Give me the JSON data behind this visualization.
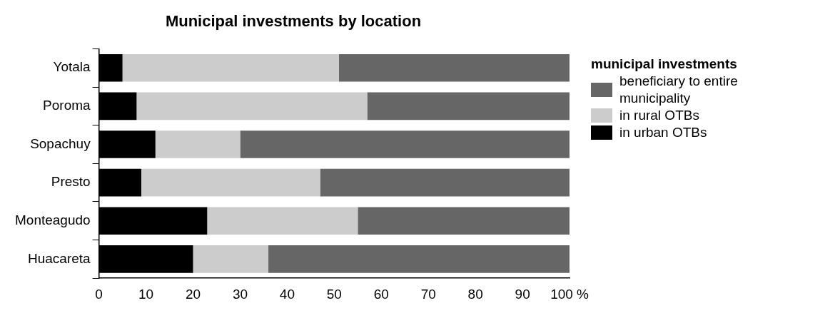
{
  "chart_data": {
    "type": "bar",
    "title": "Municipal investments by location",
    "orientation": "horizontal",
    "stacked": true,
    "categories": [
      "Yotala",
      "Poroma",
      "Sopachuy",
      "Presto",
      "Monteagudo",
      "Huacareta"
    ],
    "series": [
      {
        "name": "in urban OTBs",
        "color": "#000000",
        "values": [
          5,
          8,
          12,
          9,
          23,
          20
        ]
      },
      {
        "name": "in rural OTBs",
        "color": "#cccccc",
        "values": [
          46,
          49,
          18,
          38,
          32,
          16
        ]
      },
      {
        "name": "beneficiary to entire municipality",
        "color": "#666666",
        "values": [
          49,
          43,
          70,
          53,
          45,
          64
        ]
      }
    ],
    "xlim": [
      0,
      100
    ],
    "xticks": [
      0,
      10,
      20,
      30,
      40,
      50,
      60,
      70,
      80,
      90,
      {
        "value": 100,
        "label": "100 %"
      }
    ],
    "grid": false,
    "legend": "right",
    "legend_title": "municipal investments"
  }
}
